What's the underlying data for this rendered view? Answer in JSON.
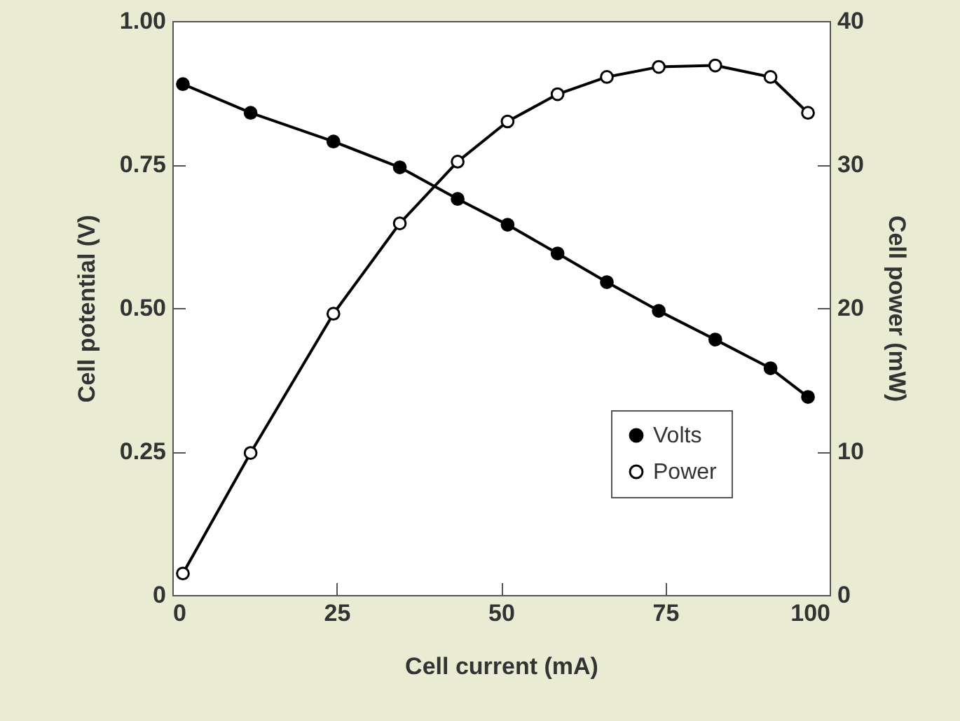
{
  "chart_data": {
    "type": "line",
    "xlabel": "Cell current (mA)",
    "ylabel": "Cell potential (V)",
    "y2label": "Cell power (mW)",
    "x": [
      1.6,
      11.9,
      24.5,
      34.6,
      43.4,
      51,
      58.6,
      66.1,
      74,
      82.6,
      91,
      96.7
    ],
    "series": [
      {
        "name": "Volts",
        "color": "#000000",
        "values": [
          0.89,
          0.84,
          0.79,
          0.745,
          0.69,
          0.645,
          0.595,
          0.545,
          0.495,
          0.445,
          0.395,
          0.345
        ]
      },
      {
        "name": "Power",
        "color": "#000000",
        "axis": "y2",
        "values": [
          1.5,
          9.9,
          19.6,
          25.9,
          30.2,
          33.0,
          34.9,
          36.1,
          36.8,
          36.9,
          36.1,
          33.6
        ]
      }
    ],
    "xlim": [
      0,
      100
    ],
    "xticks": [
      0,
      25,
      50,
      75,
      100
    ],
    "ylim": [
      0,
      1
    ],
    "yticks": [
      {
        "value": 0,
        "label": "0"
      },
      {
        "value": 0.25,
        "label": "0.25"
      },
      {
        "value": 0.5,
        "label": "0.50"
      },
      {
        "value": 0.75,
        "label": "0.75"
      },
      {
        "value": 1,
        "label": "1.00"
      }
    ],
    "y2lim": [
      0,
      40
    ],
    "y2ticks": [
      0,
      10,
      20,
      30,
      40
    ],
    "grid": false,
    "legend": "bottom right",
    "marker": "circle",
    "line_style": "solid"
  }
}
